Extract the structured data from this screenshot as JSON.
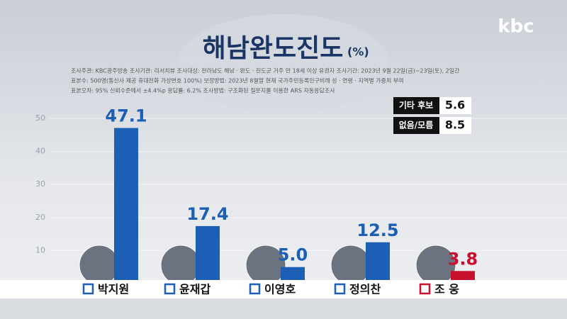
{
  "brand": "kbc",
  "chart_data": {
    "type": "bar",
    "title": "해남완도진도",
    "unit": "(%)",
    "notes": [
      "조사주관: KBC광주방송    조사기관: 리서치뷰    조사대상: 전라남도 해남 · 완도 · 진도군 거주 만 18세 이상 유권자    조사기간: 2023년 9월 22일(금)~23일(토), 2일간",
      "표본수: 500명(통신사 제공 휴대전화 가상번호 100%)    보정방법: 2023년 8월말 현재 국가주민등록인구비례 성 · 연령 · 지역별 가중치 부여",
      "표본오차: 95% 신뢰수준에서 ±4.4%p    응답률: 6.2%    조사방법: 구조화된 질문지를 이용한 ARS 자동응답조사"
    ],
    "categories": [
      "박지원",
      "윤재갑",
      "이영호",
      "정의찬",
      "조 웅"
    ],
    "values": [
      47.1,
      17.4,
      5.0,
      12.5,
      3.8
    ],
    "value_labels": [
      "47.1",
      "17.4",
      "5.0",
      "12.5",
      "3.8"
    ],
    "colors": [
      "#1d5fb5",
      "#1d5fb5",
      "#1d5fb5",
      "#1d5fb5",
      "#c8102e"
    ],
    "ylim": [
      0,
      50
    ],
    "yticks": [
      10,
      20,
      30,
      40,
      50
    ],
    "grid": true,
    "others": [
      {
        "label": "기타 후보",
        "value": 5.6
      },
      {
        "label": "없음/모름",
        "value": 8.5
      }
    ]
  }
}
